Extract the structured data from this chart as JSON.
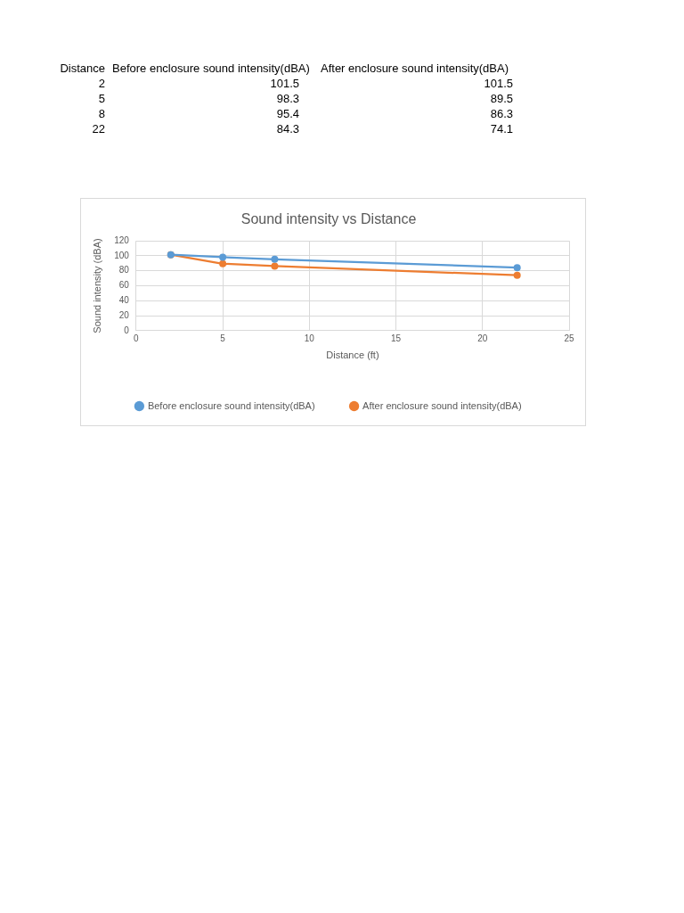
{
  "chart_data": [
    {
      "type": "other",
      "categories": [
        "Distance",
        "Before enclosure sound intensity(dBA)",
        "After enclosure sound intensity(dBA)"
      ],
      "annotations": [
        "2",
        "101.5",
        "101.5",
        "5",
        "98.3",
        "89.5",
        "8",
        "95.4",
        "86.3",
        "22",
        "84.3",
        "74.1"
      ]
    },
    {
      "type": "line",
      "title": "Sound intensity vs Distance",
      "xlabel": "Distance (ft)",
      "ylabel": "Sound intensity (dBA)",
      "x": [
        2,
        5,
        8,
        22
      ],
      "series": [
        {
          "name": "Before enclosure sound intensity(dBA)",
          "color": "#5b9bd5",
          "values": [
            101.5,
            98.3,
            95.4,
            84.3
          ]
        },
        {
          "name": "After enclosure sound intensity(dBA)",
          "color": "#ed7d31",
          "values": [
            101.5,
            89.5,
            86.3,
            74.1
          ]
        }
      ],
      "xlim": [
        0,
        25
      ],
      "xticks": [
        0,
        5,
        10,
        15,
        20,
        25
      ],
      "ylim": [
        0,
        120
      ],
      "yticks": [
        0,
        20,
        40,
        60,
        80,
        100,
        120
      ],
      "grid": true,
      "legend": "bottom",
      "marker": "circle",
      "line_style": "solid"
    }
  ]
}
